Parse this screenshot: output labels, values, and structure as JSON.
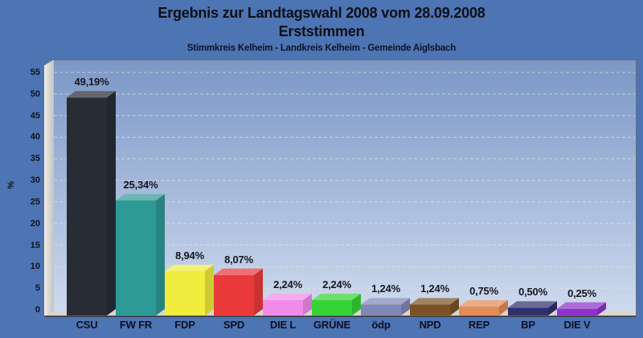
{
  "page": {
    "title_line1": "Ergebnis zur Landtagswahl 2008 vom 28.09.2008",
    "title_line2": "Erststimmen",
    "subtitle": "Stimmkreis Kelheim - Landkreis Kelheim - Gemeinde Aiglsbach"
  },
  "colors": {
    "background": "#4d74b3",
    "plot_gradient_top": "#7b97c6",
    "plot_gradient_bottom": "#cdd9ee",
    "wall_light": "#f2f1ef",
    "wall_dark": "#c3c2be",
    "floor": "#d8d6d0",
    "frame": "#6a7078",
    "frame_bottom": "#343946",
    "gridline": "#e9e7d6",
    "text": "#10141f"
  },
  "chart_data": {
    "type": "bar",
    "title": "Ergebnis zur Landtagswahl 2008 vom 28.09.2008 — Erststimmen",
    "subtitle": "Stimmkreis Kelheim - Landkreis Kelheim - Gemeinde Aiglsbach",
    "xlabel": "",
    "ylabel": "%",
    "ylim": [
      0,
      55
    ],
    "yticks": [
      0,
      5,
      10,
      15,
      20,
      25,
      30,
      35,
      40,
      45,
      50,
      55
    ],
    "grid": "horizontal-dashed",
    "legend_position": "none",
    "style": "3d-bars",
    "categories": [
      "CSU",
      "FW FR",
      "FDP",
      "SPD",
      "DIE L",
      "GRÜNE",
      "ödp",
      "NPD",
      "REP",
      "BP",
      "DIE V"
    ],
    "values": [
      49.19,
      25.34,
      8.94,
      8.07,
      2.24,
      2.24,
      1.24,
      1.24,
      0.75,
      0.5,
      0.25
    ],
    "value_labels": [
      "49,19%",
      "25,34%",
      "8,94%",
      "8,07%",
      "2,24%",
      "2,24%",
      "1,24%",
      "1,24%",
      "0,75%",
      "0,50%",
      "0,25%"
    ],
    "bar_colors": [
      "#282d35",
      "#2e9a96",
      "#f0ed3e",
      "#ea393b",
      "#f08ce8",
      "#36d336",
      "#8188b6",
      "#7c5224",
      "#e28c57",
      "#31306f",
      "#8d33c9"
    ]
  }
}
